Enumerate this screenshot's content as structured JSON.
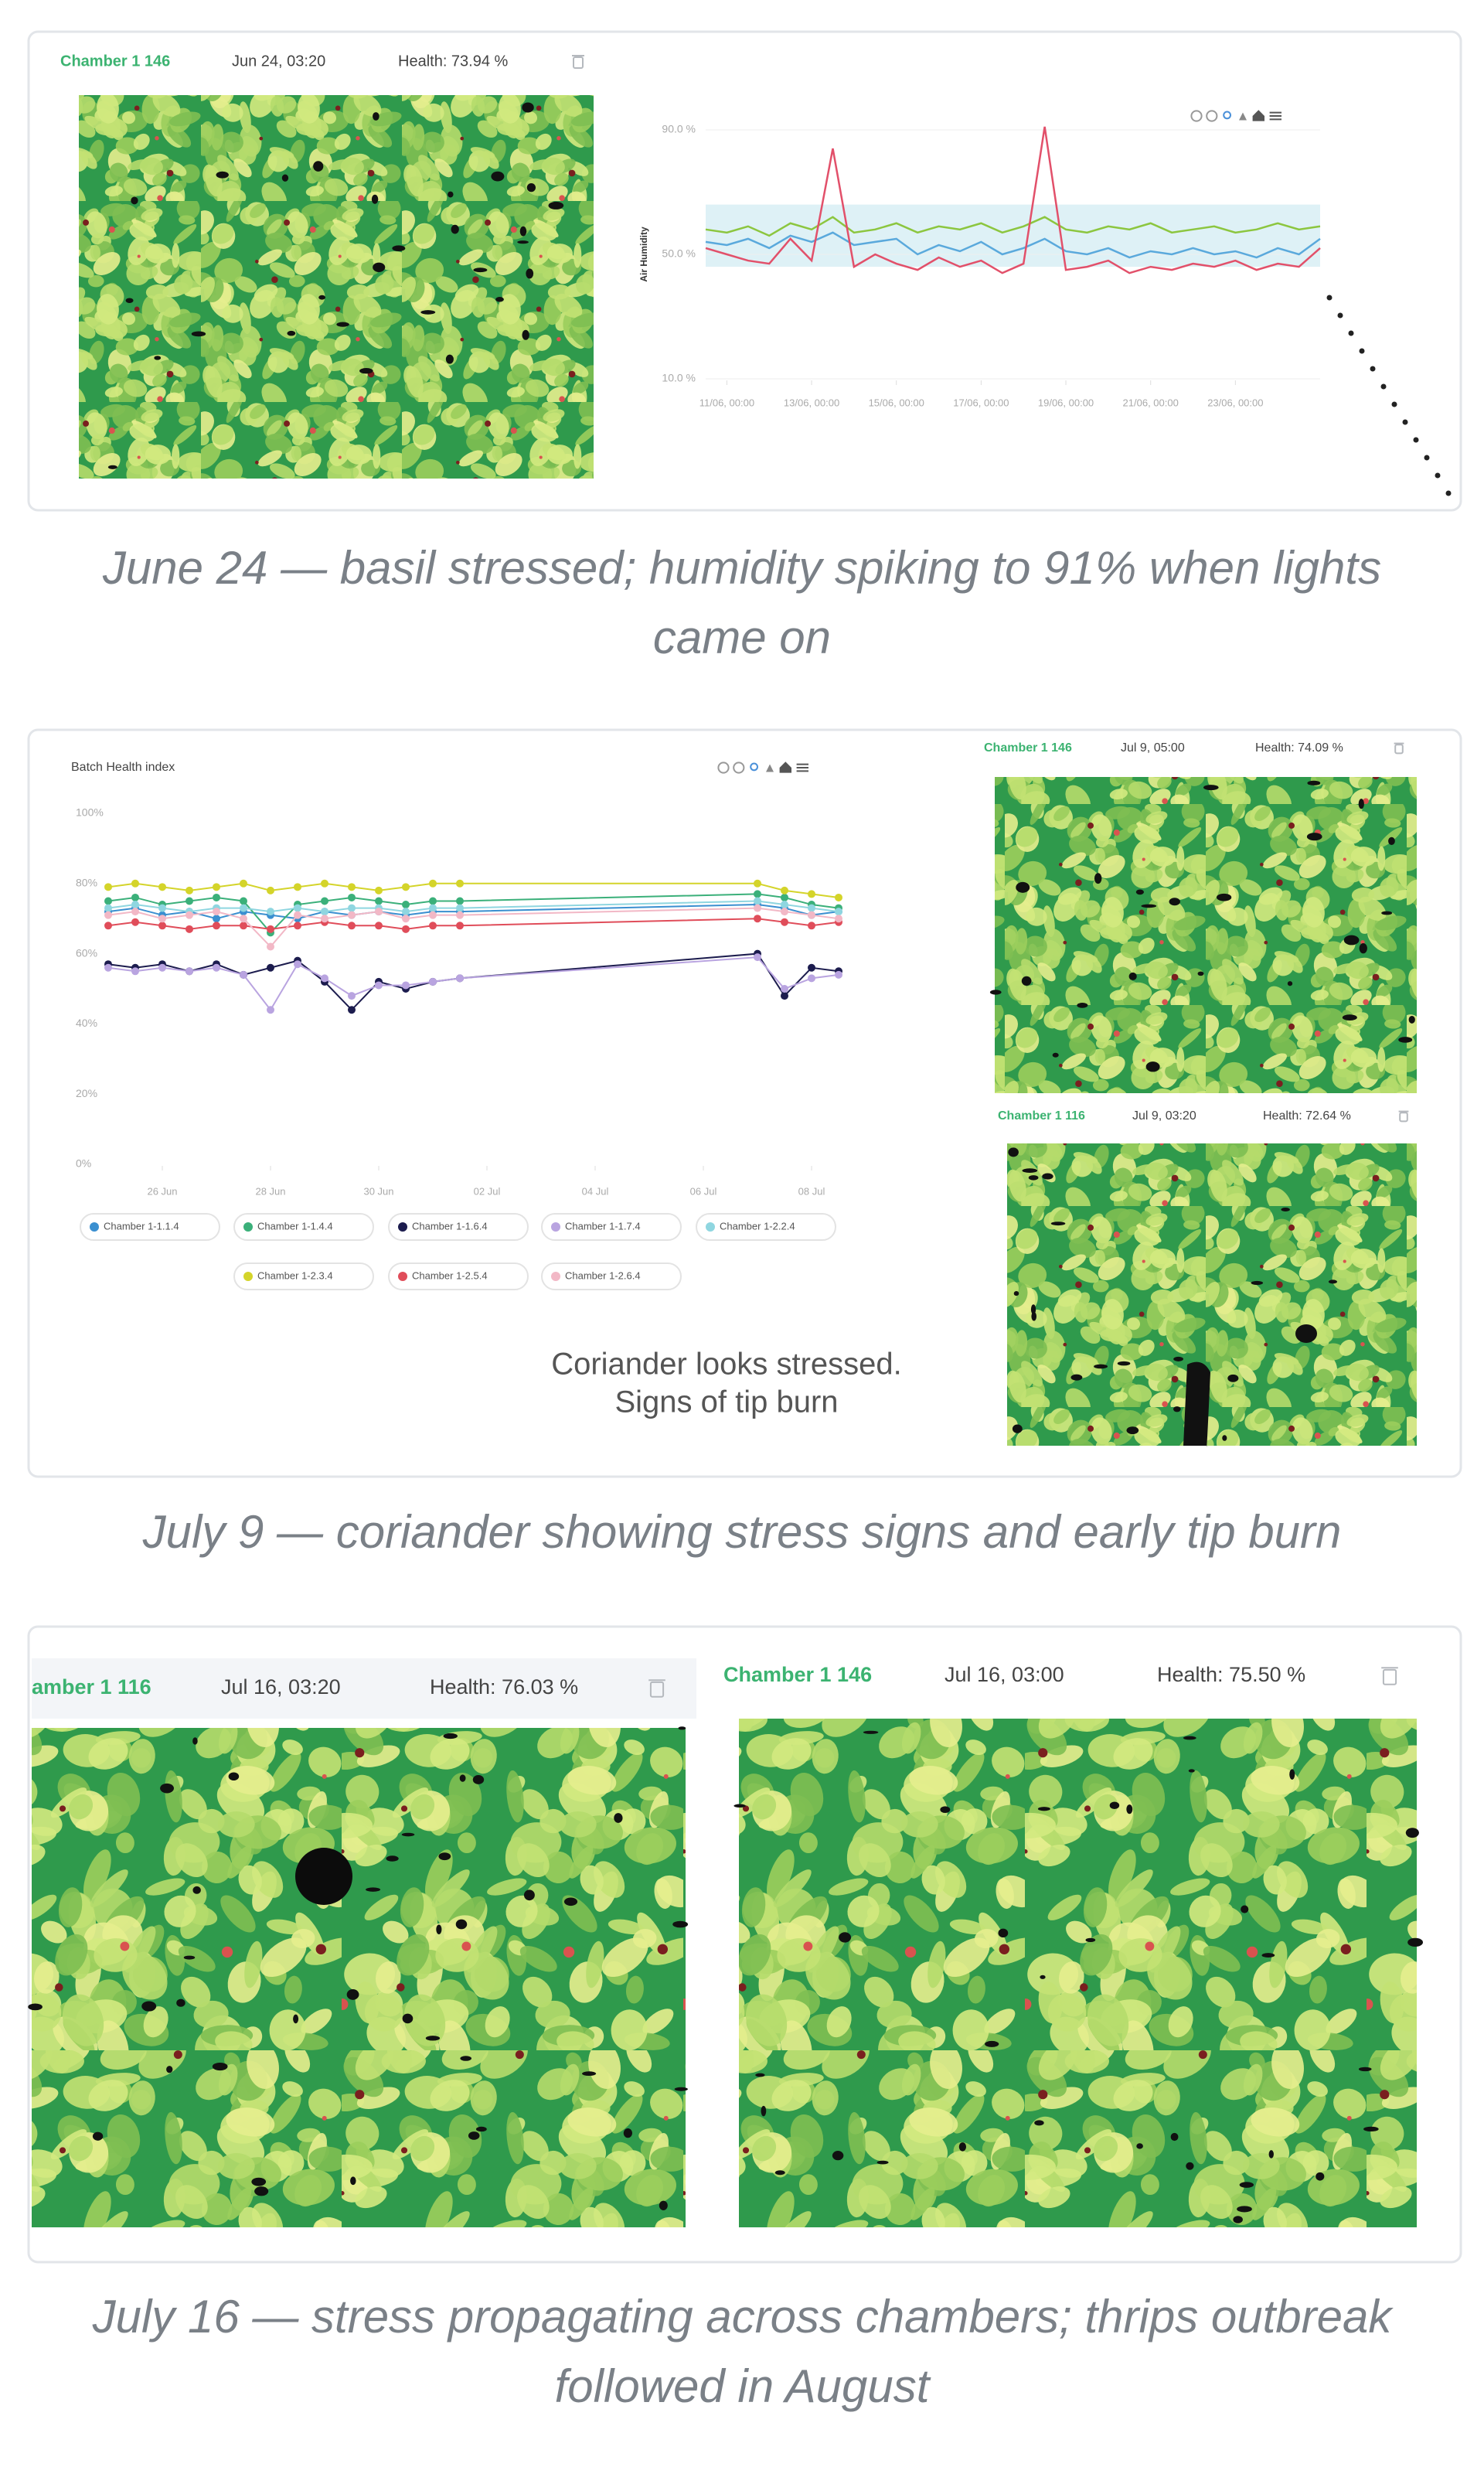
{
  "chart_data": [
    {
      "type": "line",
      "y_label": "Air Humidity",
      "x": [
        10.5,
        11,
        11.5,
        12,
        12.5,
        13,
        13.5,
        14,
        14.5,
        15,
        15.5,
        16,
        16.5,
        17,
        17.5,
        18,
        18.5,
        19,
        19.5,
        20,
        20.5,
        21,
        21.5,
        22,
        22.5,
        23,
        23.5,
        24,
        24.5,
        25
      ],
      "series": [
        {
          "color": "#8cc63f",
          "values": [
            58,
            57,
            59,
            56,
            60,
            58,
            62,
            57,
            58,
            60,
            57,
            59,
            58,
            60,
            57,
            59,
            62,
            58,
            57,
            59,
            58,
            60,
            57,
            58,
            59,
            57,
            58,
            60,
            58,
            59
          ]
        },
        {
          "color": "#5aa9dc",
          "values": [
            54,
            53,
            55,
            52,
            56,
            54,
            57,
            53,
            54,
            55,
            50,
            53,
            51,
            54,
            50,
            52,
            55,
            51,
            50,
            52,
            49,
            51,
            50,
            52,
            50,
            51,
            49,
            52,
            50,
            55
          ]
        },
        {
          "color": "#e2506a",
          "values": [
            52,
            50,
            48,
            47,
            55,
            48,
            84,
            46,
            50,
            47,
            45,
            49,
            46,
            48,
            44,
            47,
            91,
            45,
            46,
            48,
            44,
            46,
            45,
            47,
            46,
            48,
            45,
            47,
            46,
            52
          ]
        }
      ],
      "band": [
        46,
        66
      ],
      "xlim": [
        10.5,
        25
      ],
      "ylim": [
        10,
        90
      ],
      "xticks": [
        {
          "value": 11,
          "label": "11/06, 00:00"
        },
        {
          "value": 13,
          "label": "13/06, 00:00"
        },
        {
          "value": 15,
          "label": "15/06, 00:00"
        },
        {
          "value": 17,
          "label": "17/06, 00:00"
        },
        {
          "value": 19,
          "label": "19/06, 00:00"
        },
        {
          "value": 21,
          "label": "21/06, 00:00"
        },
        {
          "value": 23,
          "label": "23/06, 00:00"
        }
      ],
      "yticks": [
        {
          "value": 10,
          "label": "10.0 %"
        },
        {
          "value": 50,
          "label": "50.0 %"
        },
        {
          "value": 90,
          "label": "90.0 %"
        }
      ],
      "grid": true
    },
    {
      "type": "line",
      "title": "Batch Health index",
      "x": [
        25,
        25.5,
        26,
        26.5,
        27,
        27.5,
        28,
        28.5,
        29,
        29.5,
        30,
        30.5,
        31,
        31.5,
        37,
        37.5,
        38,
        38.5
      ],
      "series": [
        {
          "name": "Chamber 1-1.1.4",
          "color": "#3a8fd0",
          "values": [
            72,
            73,
            71,
            72,
            70,
            72,
            71,
            70,
            72,
            71,
            72,
            71,
            72,
            72,
            74,
            73,
            71,
            72
          ]
        },
        {
          "name": "Chamber 1-1.4.4",
          "color": "#3bb07a",
          "values": [
            75,
            76,
            74,
            75,
            76,
            75,
            66,
            74,
            75,
            76,
            75,
            74,
            75,
            75,
            77,
            76,
            74,
            73
          ]
        },
        {
          "name": "Chamber 1-1.6.4",
          "color": "#1c1c4e",
          "values": [
            57,
            56,
            57,
            55,
            57,
            54,
            56,
            58,
            52,
            44,
            52,
            50,
            52,
            53,
            60,
            48,
            56,
            55
          ]
        },
        {
          "name": "Chamber 1-1.7.4",
          "color": "#b9a4e0",
          "values": [
            56,
            55,
            56,
            55,
            56,
            54,
            44,
            57,
            53,
            48,
            51,
            51,
            52,
            53,
            59,
            50,
            53,
            54
          ]
        },
        {
          "name": "Chamber 1-2.2.4",
          "color": "#8fd6e0",
          "values": [
            73,
            74,
            73,
            72,
            73,
            73,
            72,
            73,
            72,
            73,
            73,
            72,
            73,
            73,
            75,
            74,
            73,
            72
          ]
        },
        {
          "name": "Chamber 1-2.3.4",
          "color": "#d4d42a",
          "values": [
            79,
            80,
            79,
            78,
            79,
            80,
            78,
            79,
            80,
            79,
            78,
            79,
            80,
            80,
            80,
            78,
            77,
            76
          ]
        },
        {
          "name": "Chamber 1-2.5.4",
          "color": "#e04d5a",
          "values": [
            68,
            69,
            68,
            67,
            68,
            68,
            67,
            68,
            69,
            68,
            68,
            67,
            68,
            68,
            70,
            69,
            68,
            69
          ]
        },
        {
          "name": "Chamber 1-2.6.4",
          "color": "#f2b8c6",
          "values": [
            71,
            72,
            70,
            71,
            72,
            70,
            62,
            71,
            70,
            71,
            72,
            70,
            71,
            71,
            73,
            72,
            71,
            70
          ]
        }
      ],
      "xlim": [
        24.9,
        38.9
      ],
      "ylim": [
        0,
        100
      ],
      "xticks": [
        {
          "value": 26,
          "label": "26 Jun"
        },
        {
          "value": 28,
          "label": "28 Jun"
        },
        {
          "value": 30,
          "label": "30 Jun"
        },
        {
          "value": 32,
          "label": "02 Jul"
        },
        {
          "value": 34,
          "label": "04 Jul"
        },
        {
          "value": 36,
          "label": "06 Jul"
        },
        {
          "value": 38,
          "label": "08 Jul"
        }
      ],
      "yticks": [
        {
          "value": 0,
          "label": "0%"
        },
        {
          "value": 20,
          "label": "20%"
        },
        {
          "value": 40,
          "label": "40%"
        },
        {
          "value": 60,
          "label": "60%"
        },
        {
          "value": 80,
          "label": "80%"
        },
        {
          "value": 100,
          "label": "100%"
        }
      ],
      "legend": "bottom",
      "annotation": [
        "Coriander looks stressed.",
        "Signs of tip burn"
      ]
    }
  ],
  "figures": [
    {
      "cards": [
        {
          "chamber": "Chamber 1 146",
          "time": "Jun 24, 03:20",
          "health": "Health: 73.94 %"
        }
      ],
      "caption": "June 24 — basil stressed; humidity spiking to 91% when lights came on"
    },
    {
      "cards": [
        {
          "chamber": "Chamber 1 146",
          "time": "Jul 9, 05:00",
          "health": "Health: 74.09 %"
        },
        {
          "chamber": "Chamber 1 116",
          "time": "Jul 9, 03:20",
          "health": "Health: 72.64 %"
        }
      ],
      "caption": "July 9 — coriander showing stress signs and early tip burn"
    },
    {
      "cards": [
        {
          "chamber": "amber 1 116",
          "time": "Jul 16, 03:20",
          "health": "Health: 76.03 %"
        },
        {
          "chamber": "Chamber 1 146",
          "time": "Jul 16, 03:00",
          "health": "Health: 75.50 %"
        }
      ],
      "caption": "July 16 — stress propagating across chambers; thrips outbreak followed in August"
    }
  ]
}
